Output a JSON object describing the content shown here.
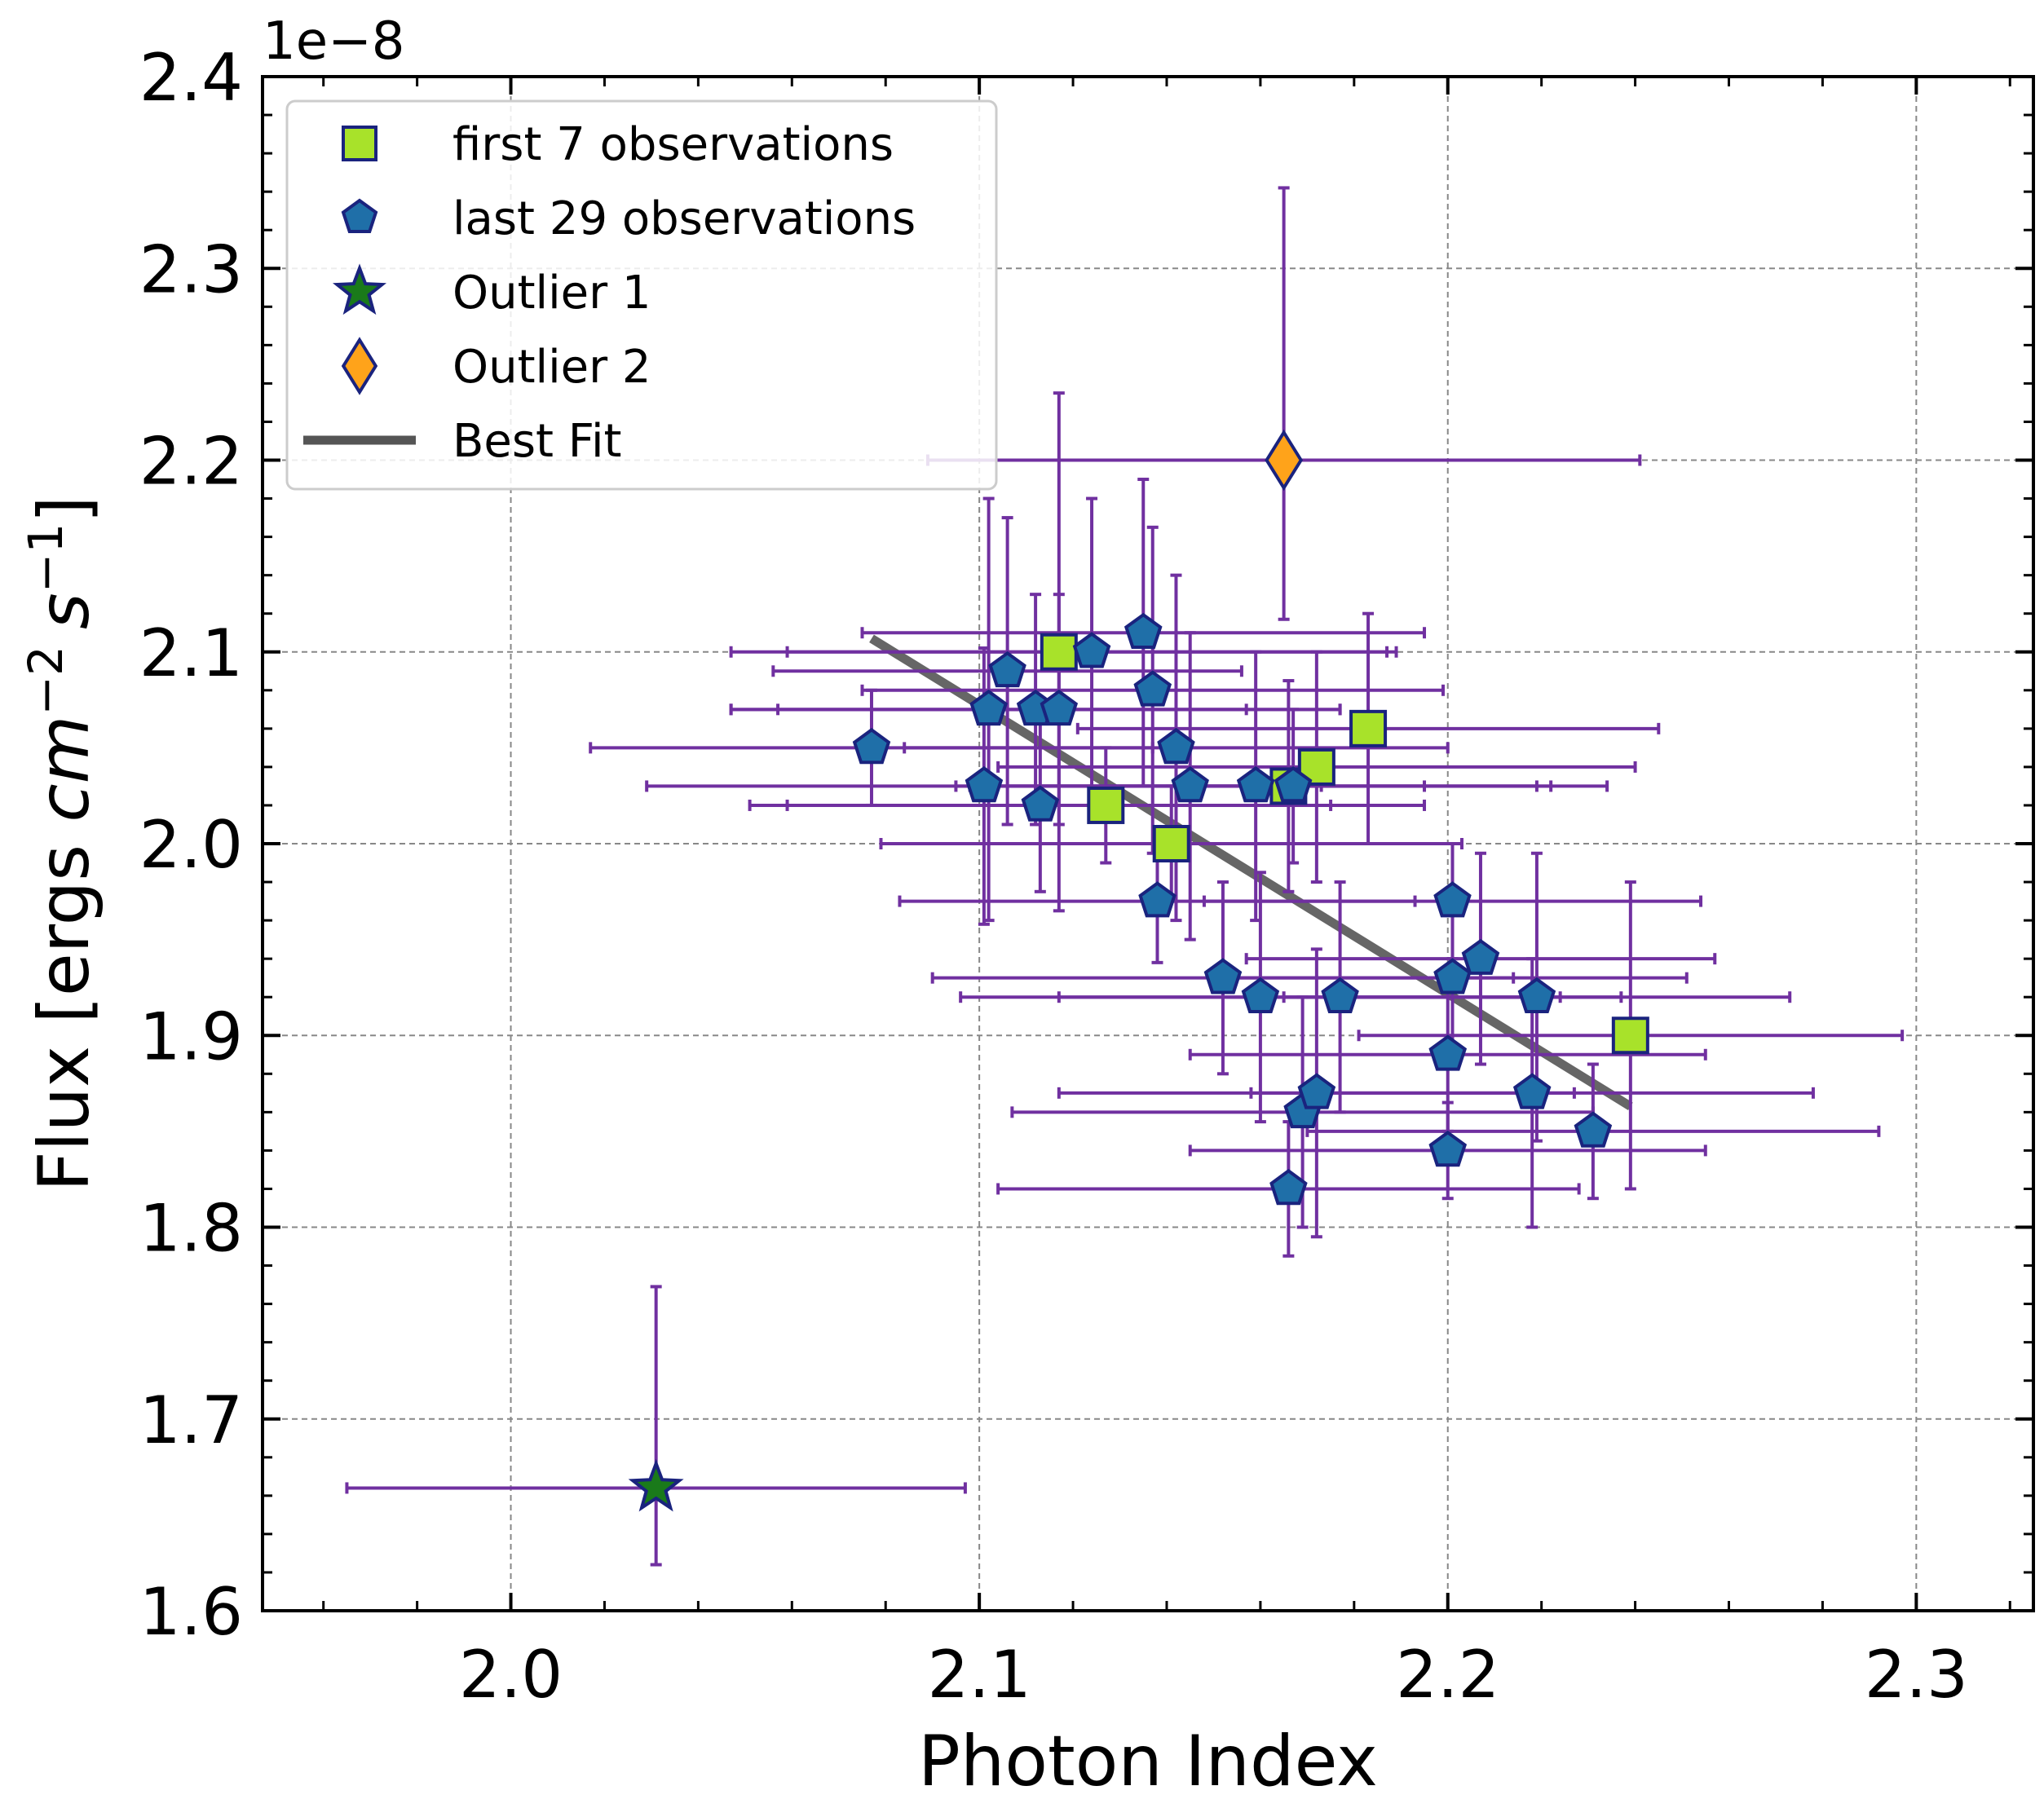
{
  "chart_data": {
    "type": "scatter",
    "xlabel": "Photon Index",
    "ylabel_prefix": "Flux [ergs ",
    "ylabel_cm": "cm",
    "ylabel_cm_exp": "−2",
    "ylabel_s": "s",
    "ylabel_s_exp": "−1",
    "ylabel_suffix": "]",
    "y_offset_text": "1e−8",
    "xlim": [
      1.947,
      2.325
    ],
    "ylim": [
      1.6,
      2.4
    ],
    "xticks": [
      2.0,
      2.1,
      2.2,
      2.3
    ],
    "xtick_labels": [
      "2.0",
      "2.1",
      "2.2",
      "2.3"
    ],
    "yticks": [
      1.6,
      1.7,
      1.8,
      1.9,
      2.0,
      2.1,
      2.2,
      2.3,
      2.4
    ],
    "ytick_labels": [
      "1.6",
      "1.7",
      "1.8",
      "1.9",
      "2.0",
      "2.1",
      "2.2",
      "2.3",
      "2.4"
    ],
    "grid": true,
    "legend_position": "top-left",
    "errorbar_color": "#7030a0",
    "series": [
      {
        "name": "first 7 observations",
        "marker": "square",
        "color": "#a8e22a",
        "edge_color": "#1a237e",
        "points": [
          {
            "x": 2.117,
            "y": 2.1,
            "xerr": 0.07,
            "yerr": 0.135
          },
          {
            "x": 2.127,
            "y": 2.02,
            "xerr": 0.068,
            "yerr": 0.03
          },
          {
            "x": 2.141,
            "y": 2.0,
            "xerr": 0.062,
            "yerr": 0.03
          },
          {
            "x": 2.166,
            "y": 2.03,
            "xerr": 0.068,
            "yerr": 0.055
          },
          {
            "x": 2.172,
            "y": 2.04,
            "xerr": 0.068,
            "yerr": 0.06
          },
          {
            "x": 2.183,
            "y": 2.06,
            "xerr": 0.062,
            "yerr": 0.06
          },
          {
            "x": 2.239,
            "y": 1.9,
            "xerr": 0.058,
            "yerr": 0.08
          }
        ]
      },
      {
        "name": "last 29 observations",
        "marker": "pentagon",
        "color": "#1f6fa8",
        "edge_color": "#1a237e",
        "points": [
          {
            "x": 2.077,
            "y": 2.05,
            "xerr": 0.06,
            "yerr": 0.03
          },
          {
            "x": 2.101,
            "y": 2.03,
            "xerr": 0.072,
            "yerr": 0.072
          },
          {
            "x": 2.102,
            "y": 2.07,
            "xerr": 0.055,
            "yerr": 0.11
          },
          {
            "x": 2.106,
            "y": 2.09,
            "xerr": 0.05,
            "yerr": 0.08
          },
          {
            "x": 2.112,
            "y": 2.07,
            "xerr": 0.065,
            "yerr": 0.06
          },
          {
            "x": 2.113,
            "y": 2.02,
            "xerr": 0.062,
            "yerr": 0.045
          },
          {
            "x": 2.117,
            "y": 2.07,
            "xerr": 0.06,
            "yerr": 0.06
          },
          {
            "x": 2.124,
            "y": 2.1,
            "xerr": 0.065,
            "yerr": 0.08
          },
          {
            "x": 2.135,
            "y": 2.11,
            "xerr": 0.06,
            "yerr": 0.08
          },
          {
            "x": 2.137,
            "y": 2.08,
            "xerr": 0.062,
            "yerr": 0.085
          },
          {
            "x": 2.138,
            "y": 1.97,
            "xerr": 0.055,
            "yerr": 0.032
          },
          {
            "x": 2.142,
            "y": 2.05,
            "xerr": 0.058,
            "yerr": 0.09
          },
          {
            "x": 2.145,
            "y": 2.03,
            "xerr": 0.05,
            "yerr": 0.08
          },
          {
            "x": 2.152,
            "y": 1.93,
            "xerr": 0.062,
            "yerr": 0.05
          },
          {
            "x": 2.159,
            "y": 2.03,
            "xerr": 0.06,
            "yerr": 0.07
          },
          {
            "x": 2.16,
            "y": 1.92,
            "xerr": 0.064,
            "yerr": 0.065
          },
          {
            "x": 2.166,
            "y": 1.82,
            "xerr": 0.062,
            "yerr": 0.035
          },
          {
            "x": 2.167,
            "y": 2.03,
            "xerr": 0.055,
            "yerr": 0.04
          },
          {
            "x": 2.169,
            "y": 1.86,
            "xerr": 0.062,
            "yerr": 0.06
          },
          {
            "x": 2.172,
            "y": 1.87,
            "xerr": 0.055,
            "yerr": 0.075
          },
          {
            "x": 2.177,
            "y": 1.92,
            "xerr": 0.06,
            "yerr": 0.06
          },
          {
            "x": 2.2,
            "y": 1.84,
            "xerr": 0.055,
            "yerr": 0.025
          },
          {
            "x": 2.2,
            "y": 1.89,
            "xerr": 0.055,
            "yerr": 0.04
          },
          {
            "x": 2.201,
            "y": 1.97,
            "xerr": 0.053,
            "yerr": 0.03
          },
          {
            "x": 2.201,
            "y": 1.93,
            "xerr": 0.05,
            "yerr": 0.04
          },
          {
            "x": 2.207,
            "y": 1.94,
            "xerr": 0.05,
            "yerr": 0.055
          },
          {
            "x": 2.218,
            "y": 1.87,
            "xerr": 0.06,
            "yerr": 0.07
          },
          {
            "x": 2.219,
            "y": 1.92,
            "xerr": 0.054,
            "yerr": 0.075
          },
          {
            "x": 2.231,
            "y": 1.85,
            "xerr": 0.061,
            "yerr": 0.035
          }
        ]
      },
      {
        "name": "Outlier 1",
        "marker": "star",
        "color": "#1a7a1a",
        "edge_color": "#1a237e",
        "points": [
          {
            "x": 2.031,
            "y": 1.664,
            "xerr": 0.066,
            "yerr": 0.105,
            "yerr_low": 0.04
          }
        ]
      },
      {
        "name": "Outlier 2",
        "marker": "diamond",
        "color": "#ffa31a",
        "edge_color": "#1a237e",
        "points": [
          {
            "x": 2.165,
            "y": 2.2,
            "xerr": 0.076,
            "yerr": 0.142,
            "yerr_low": 0.083
          }
        ]
      }
    ],
    "best_fit": {
      "name": "Best Fit",
      "color": "#555555",
      "x": [
        2.077,
        2.239
      ],
      "y": [
        2.107,
        1.863
      ]
    }
  }
}
